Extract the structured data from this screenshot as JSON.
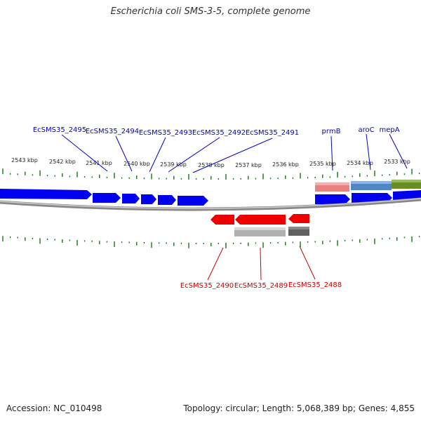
{
  "title": "Escherichia coli SMS-3-5, complete genome",
  "footer": {
    "accession": "Accession: NC_010498",
    "summary": "Topology: circular; Length: 5,068,389 bp; Genes: 4,855"
  },
  "colors": {
    "forward_gene": "#0000ee",
    "reverse_gene": "#ee0000",
    "forward_label": "#0000cc",
    "reverse_label": "#cc0000",
    "tick": "#117711",
    "backbone": "#888888",
    "feature_pink": "#e88080",
    "feature_blue": "#4f86c6",
    "feature_olive": "#6b8e23",
    "feature_lightgrey": "#b0b0b0",
    "feature_darkgrey": "#606060"
  },
  "map": {
    "kbp_labels": [
      "2543 kbp",
      "2542 kbp",
      "2541 kbp",
      "2540 kbp",
      "2539 kbp",
      "2538 kbp",
      "2537 kbp",
      "2536 kbp",
      "2535 kbp",
      "2534 kbp",
      "2533 kbp"
    ],
    "forward_gene_labels": [
      "EcSMS35_2495",
      "EcSMS35_2494",
      "EcSMS35_2493",
      "EcSMS35_2492",
      "EcSMS35_2491",
      "prmB",
      "aroC",
      "mepA"
    ],
    "reverse_gene_labels": [
      "EcSMS35_2490",
      "EcSMS35_2489",
      "EcSMS35_2488"
    ]
  }
}
